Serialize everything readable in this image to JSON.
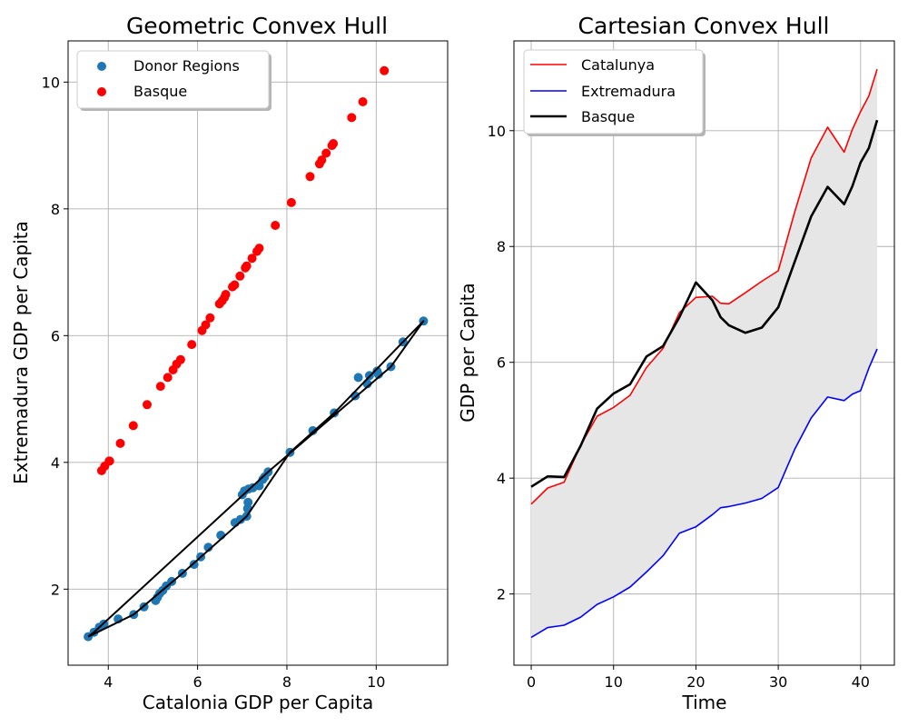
{
  "chart_data": [
    {
      "type": "scatter",
      "title": "Geometric Convex Hull",
      "xlabel": "Catalonia GDP per Capita",
      "ylabel": "Extremadura GDP per Capita",
      "xlim": [
        3.1,
        11.6
      ],
      "ylim": [
        0.8,
        10.65
      ],
      "xticks": [
        4,
        6,
        8,
        10
      ],
      "yticks": [
        2,
        4,
        6,
        8,
        10
      ],
      "grid": true,
      "legend_position": "top-left",
      "series": [
        {
          "name": "Donor Regions",
          "color": "#1f77b4",
          "points": [
            [
              3.55,
              1.25
            ],
            [
              3.68,
              1.32
            ],
            [
              3.8,
              1.4
            ],
            [
              3.9,
              1.45
            ],
            [
              4.22,
              1.53
            ],
            [
              4.57,
              1.6
            ],
            [
              4.8,
              1.72
            ],
            [
              5.06,
              1.82
            ],
            [
              5.1,
              1.87
            ],
            [
              5.15,
              1.93
            ],
            [
              5.22,
              1.98
            ],
            [
              5.3,
              2.05
            ],
            [
              5.42,
              2.12
            ],
            [
              5.66,
              2.25
            ],
            [
              5.92,
              2.39
            ],
            [
              6.07,
              2.51
            ],
            [
              6.24,
              2.66
            ],
            [
              6.52,
              2.85
            ],
            [
              6.84,
              3.05
            ],
            [
              6.96,
              3.1
            ],
            [
              7.1,
              3.15
            ],
            [
              7.12,
              3.27
            ],
            [
              7.13,
              3.37
            ],
            [
              7.0,
              3.49
            ],
            [
              7.05,
              3.55
            ],
            [
              7.14,
              3.58
            ],
            [
              7.24,
              3.6
            ],
            [
              7.38,
              3.63
            ],
            [
              7.46,
              3.73
            ],
            [
              7.5,
              3.77
            ],
            [
              7.58,
              3.85
            ],
            [
              8.07,
              4.16
            ],
            [
              8.58,
              4.5
            ],
            [
              9.06,
              4.78
            ],
            [
              9.53,
              5.05
            ],
            [
              9.6,
              5.34
            ],
            [
              9.8,
              5.24
            ],
            [
              9.85,
              5.37
            ],
            [
              10.02,
              5.44
            ],
            [
              10.05,
              5.39
            ],
            [
              10.33,
              5.51
            ],
            [
              10.6,
              5.9
            ],
            [
              11.06,
              6.23
            ]
          ]
        },
        {
          "name": "Basque",
          "color": "#ff0000",
          "points": [
            [
              3.85,
              3.87
            ],
            [
              3.92,
              3.94
            ],
            [
              4.02,
              4.02
            ],
            [
              4.03,
              4.02
            ],
            [
              4.27,
              4.3
            ],
            [
              4.56,
              4.58
            ],
            [
              4.87,
              4.91
            ],
            [
              5.17,
              5.2
            ],
            [
              5.33,
              5.34
            ],
            [
              5.45,
              5.46
            ],
            [
              5.53,
              5.55
            ],
            [
              5.62,
              5.62
            ],
            [
              5.87,
              5.86
            ],
            [
              6.1,
              6.08
            ],
            [
              6.18,
              6.17
            ],
            [
              6.28,
              6.28
            ],
            [
              6.49,
              6.5
            ],
            [
              6.55,
              6.55
            ],
            [
              6.6,
              6.6
            ],
            [
              6.63,
              6.65
            ],
            [
              6.78,
              6.77
            ],
            [
              6.83,
              6.8
            ],
            [
              6.95,
              6.94
            ],
            [
              7.07,
              7.07
            ],
            [
              7.1,
              7.1
            ],
            [
              7.22,
              7.22
            ],
            [
              7.33,
              7.33
            ],
            [
              7.38,
              7.38
            ],
            [
              7.74,
              7.74
            ],
            [
              8.1,
              8.1
            ],
            [
              8.52,
              8.51
            ],
            [
              8.73,
              8.71
            ],
            [
              8.78,
              8.77
            ],
            [
              8.88,
              8.88
            ],
            [
              9.01,
              9.0
            ],
            [
              9.04,
              9.03
            ],
            [
              9.45,
              9.44
            ],
            [
              9.7,
              9.69
            ],
            [
              10.18,
              10.18
            ]
          ]
        },
        {
          "name": "",
          "color": "#000000",
          "role": "convex hull",
          "points": [
            [
              3.55,
              1.25
            ],
            [
              4.57,
              1.6
            ],
            [
              5.66,
              2.25
            ],
            [
              7.1,
              3.15
            ],
            [
              8.07,
              4.16
            ],
            [
              9.06,
              4.78
            ],
            [
              10.6,
              5.9
            ],
            [
              11.06,
              6.23
            ],
            [
              10.33,
              5.51
            ],
            [
              7.58,
              3.85
            ],
            [
              3.68,
              1.32
            ],
            [
              3.55,
              1.25
            ]
          ]
        }
      ]
    },
    {
      "type": "line",
      "title": "Cartesian Convex Hull",
      "xlabel": "Time",
      "ylabel": "GDP per Capita",
      "xlim": [
        -2.1,
        44.1
      ],
      "ylim": [
        0.77,
        11.55
      ],
      "xticks": [
        0,
        10,
        20,
        30,
        40
      ],
      "yticks": [
        2,
        4,
        6,
        8,
        10
      ],
      "grid": true,
      "legend_position": "top-left",
      "fill_between": {
        "upper": "Catalunya",
        "lower": "Extremadura",
        "color": "#e6e6e6"
      },
      "x": [
        0,
        2,
        4,
        6,
        8,
        10,
        12,
        14,
        16,
        18,
        20,
        22,
        23,
        24,
        26,
        28,
        30,
        32,
        34,
        36,
        38,
        39,
        40,
        41,
        42
      ],
      "series": [
        {
          "name": "Catalunya",
          "color": "#ff0000",
          "values": [
            3.55,
            3.83,
            3.93,
            4.57,
            5.07,
            5.22,
            5.43,
            5.91,
            6.24,
            6.86,
            7.12,
            7.14,
            7.02,
            7.01,
            7.2,
            7.4,
            7.58,
            8.6,
            9.53,
            10.06,
            9.63,
            10.02,
            10.33,
            10.6,
            11.06
          ]
        },
        {
          "name": "Extremadura",
          "color": "#0000ff",
          "values": [
            1.25,
            1.42,
            1.46,
            1.6,
            1.82,
            1.95,
            2.12,
            2.38,
            2.66,
            3.05,
            3.16,
            3.37,
            3.49,
            3.51,
            3.57,
            3.65,
            3.84,
            4.5,
            5.04,
            5.4,
            5.34,
            5.45,
            5.51,
            5.9,
            6.23
          ]
        },
        {
          "name": "Basque",
          "color": "#000000",
          "values": [
            3.85,
            4.03,
            4.02,
            4.56,
            5.2,
            5.46,
            5.62,
            6.1,
            6.28,
            6.78,
            7.38,
            7.07,
            6.78,
            6.64,
            6.51,
            6.6,
            6.95,
            7.74,
            8.52,
            9.03,
            8.73,
            9.04,
            9.45,
            9.7,
            10.18
          ]
        }
      ]
    }
  ]
}
